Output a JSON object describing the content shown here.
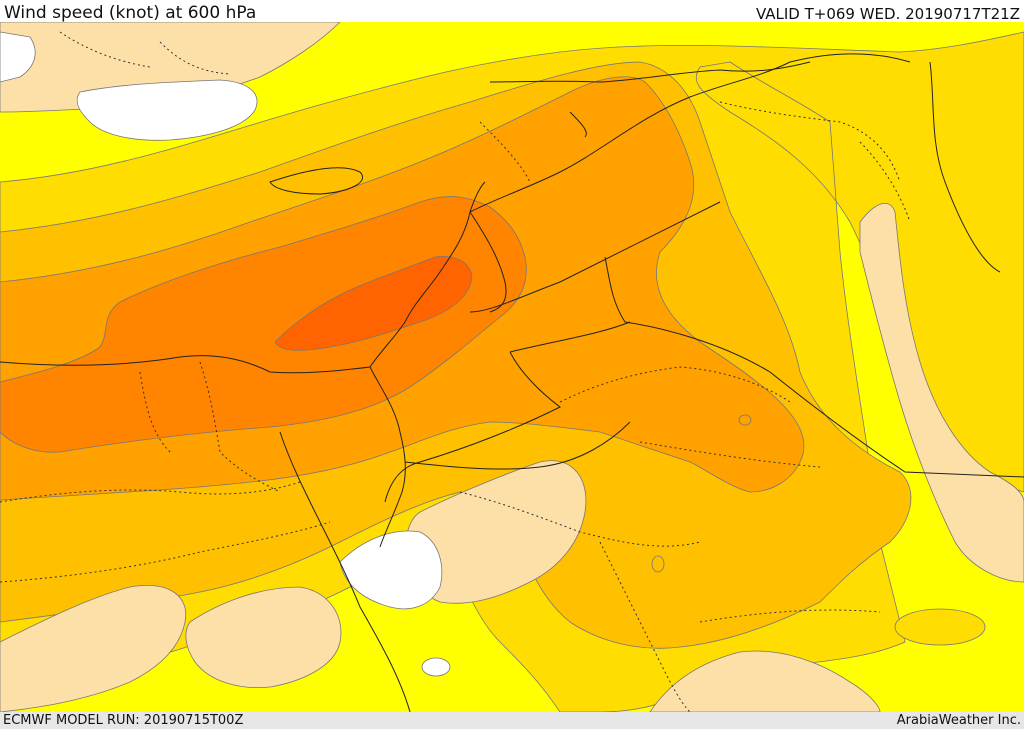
{
  "header": {
    "title": "Wind speed (knot) at 600 hPa",
    "valid": "VALID T+069 WED. 20190717T21Z"
  },
  "footer": {
    "model_run": "ECMWF MODEL RUN: 20190715T00Z",
    "credit": "ArabiaWeather Inc."
  },
  "colors": {
    "calm": "#ffffff",
    "pale": "#fde0a8",
    "yellow": "#ffff00",
    "gold": "#ffdd00",
    "amber": "#ffc000",
    "orange": "#ffa200",
    "dark_orange": "#ff8400",
    "red_orange": "#ff6400",
    "boundary": "#222222"
  }
}
